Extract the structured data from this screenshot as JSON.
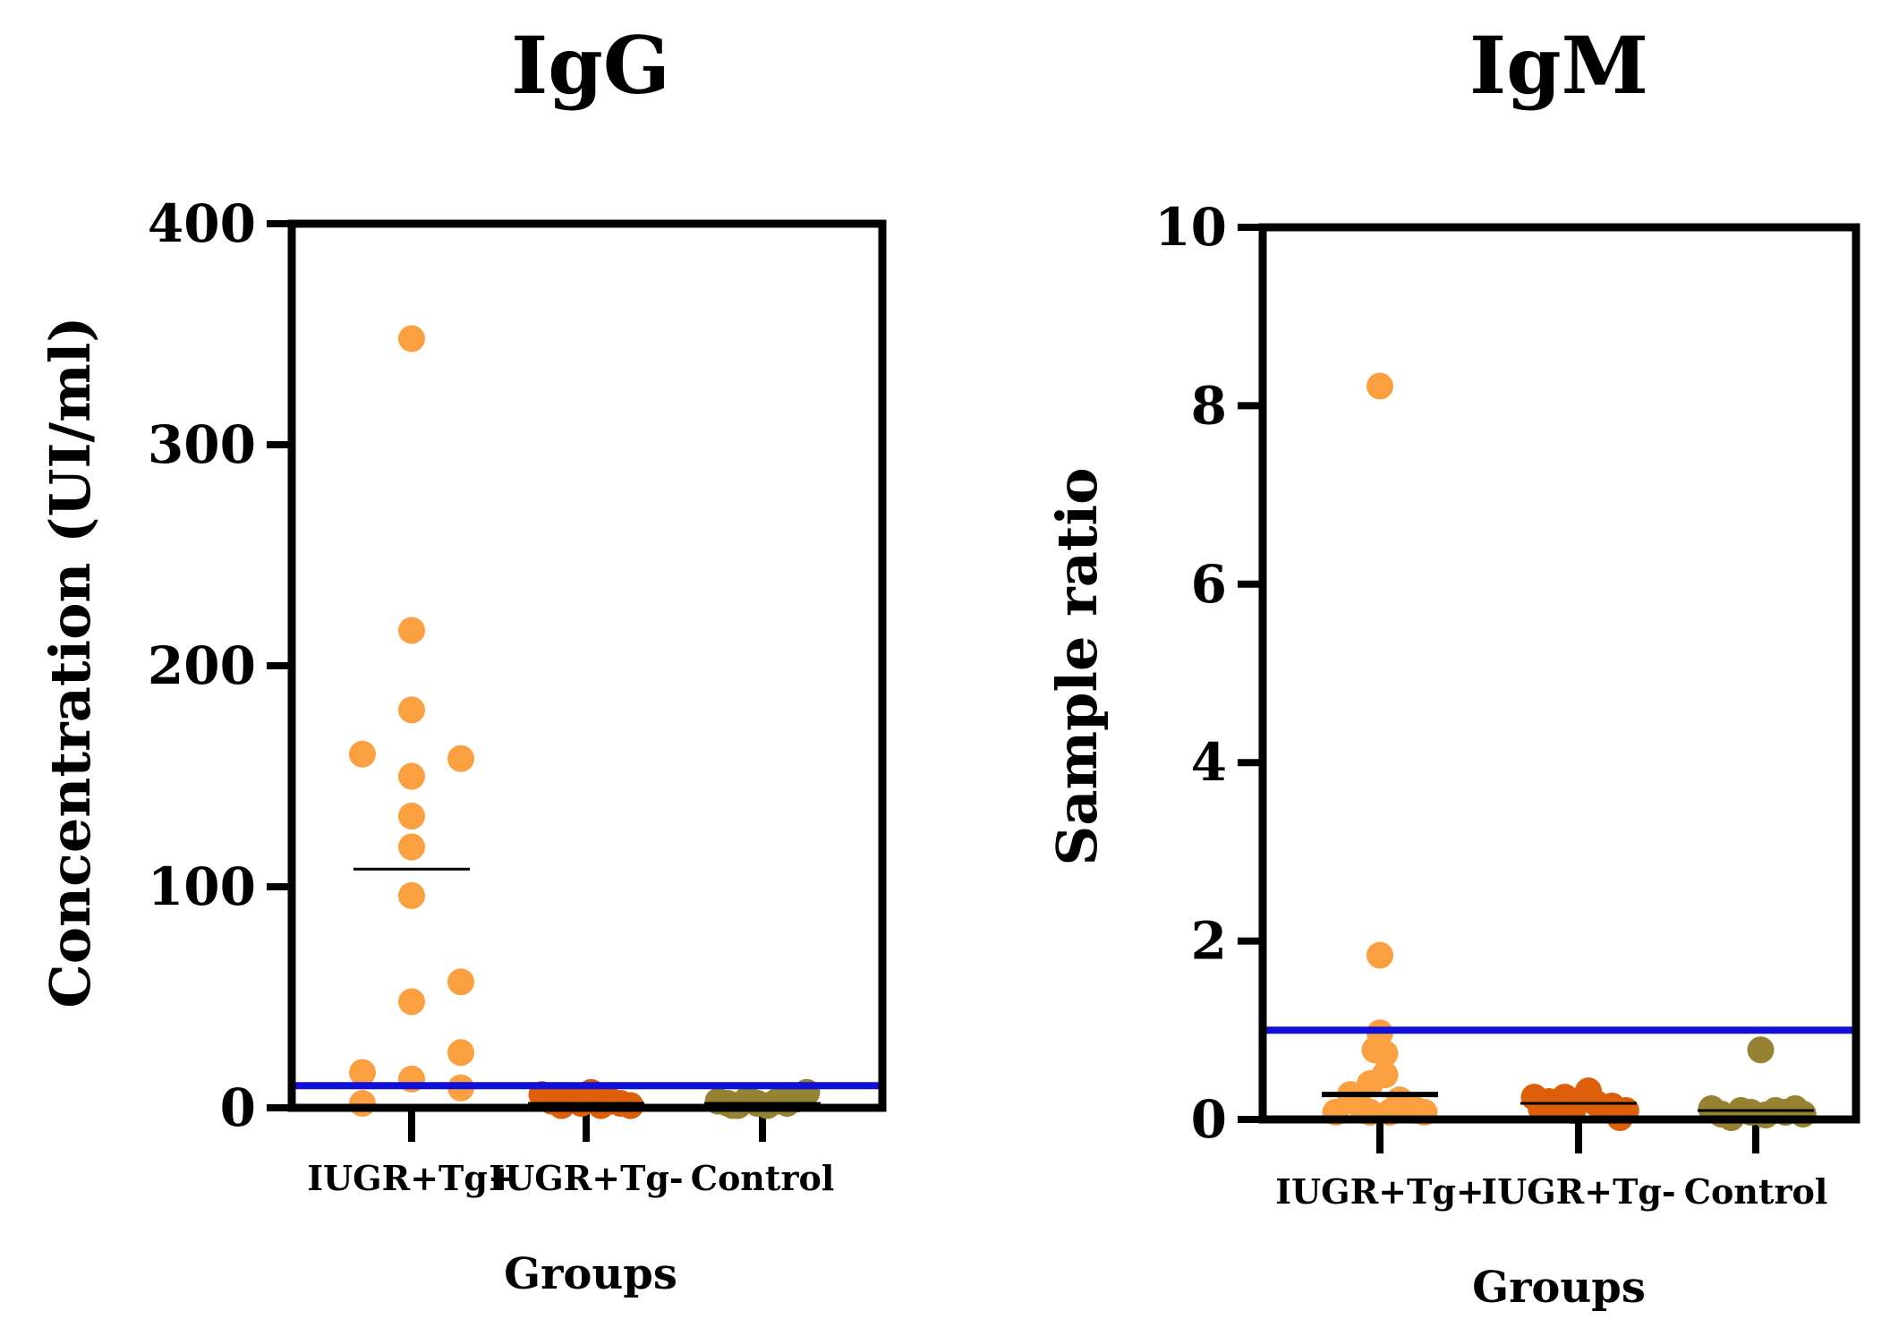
{
  "chart_data": [
    {
      "type": "scatter",
      "title": "IgG",
      "xlabel": "Groups",
      "ylabel": "Concentration (UI/ml)",
      "ylim": [
        0,
        400
      ],
      "yticks": [
        0,
        100,
        200,
        300,
        400
      ],
      "categories": [
        "IUGR+Tg+",
        "IUGR+Tg-",
        "Control"
      ],
      "cutoff": 10,
      "cutoff_color": "#1010d8",
      "grid": false,
      "series": [
        {
          "color": "#fba040",
          "mean": 108,
          "points": [
            {
              "dx": 0,
              "y": 348
            },
            {
              "dx": 0,
              "y": 216
            },
            {
              "dx": 0,
              "y": 180
            },
            {
              "dx": -0.5,
              "y": 160
            },
            {
              "dx": 0.5,
              "y": 158
            },
            {
              "dx": 0,
              "y": 150
            },
            {
              "dx": 0,
              "y": 132
            },
            {
              "dx": 0,
              "y": 118
            },
            {
              "dx": 0,
              "y": 96
            },
            {
              "dx": 0.5,
              "y": 57
            },
            {
              "dx": 0,
              "y": 48
            },
            {
              "dx": 0.5,
              "y": 25
            },
            {
              "dx": -0.5,
              "y": 16
            },
            {
              "dx": 0,
              "y": 13
            },
            {
              "dx": 0.5,
              "y": 9
            },
            {
              "dx": -0.5,
              "y": 2
            }
          ]
        },
        {
          "color": "#dd5f0a",
          "mean": 2,
          "points": [
            {
              "dx": -0.45,
              "y": 6
            },
            {
              "dx": -0.35,
              "y": 3
            },
            {
              "dx": -0.25,
              "y": 1
            },
            {
              "dx": -0.15,
              "y": 4
            },
            {
              "dx": -0.05,
              "y": 2
            },
            {
              "dx": 0.05,
              "y": 7
            },
            {
              "dx": 0.15,
              "y": 1
            },
            {
              "dx": 0.25,
              "y": 3
            },
            {
              "dx": 0.35,
              "y": 2
            },
            {
              "dx": 0.45,
              "y": 1
            },
            {
              "dx": -0.3,
              "y": 5
            },
            {
              "dx": 0.1,
              "y": 3
            }
          ]
        },
        {
          "color": "#958232",
          "mean": 2,
          "points": [
            {
              "dx": -0.45,
              "y": 3
            },
            {
              "dx": -0.35,
              "y": 2
            },
            {
              "dx": -0.25,
              "y": 1
            },
            {
              "dx": -0.15,
              "y": 4
            },
            {
              "dx": -0.05,
              "y": 2
            },
            {
              "dx": 0.05,
              "y": 1
            },
            {
              "dx": 0.15,
              "y": 3
            },
            {
              "dx": 0.25,
              "y": 2
            },
            {
              "dx": 0.35,
              "y": 4
            },
            {
              "dx": 0.45,
              "y": 7
            },
            {
              "dx": -0.3,
              "y": 1
            },
            {
              "dx": 0.3,
              "y": 5
            }
          ]
        }
      ]
    },
    {
      "type": "scatter",
      "title": "IgM",
      "xlabel": "Groups",
      "ylabel": "Sample ratio",
      "ylim": [
        0,
        10
      ],
      "yticks": [
        0,
        2,
        4,
        6,
        8,
        10
      ],
      "categories": [
        "IUGR+Tg+",
        "IUGR+Tg-",
        "Control"
      ],
      "cutoff": 1.0,
      "cutoff_color": "#1010d8",
      "grid": false,
      "series": [
        {
          "color": "#fba040",
          "mean": 0.28,
          "points": [
            {
              "dx": 0,
              "y": 8.22
            },
            {
              "dx": 0,
              "y": 1.84
            },
            {
              "dx": 0,
              "y": 0.97
            },
            {
              "dx": -0.05,
              "y": 0.78
            },
            {
              "dx": 0.05,
              "y": 0.74
            },
            {
              "dx": 0.05,
              "y": 0.5
            },
            {
              "dx": -0.1,
              "y": 0.4
            },
            {
              "dx": -0.3,
              "y": 0.28
            },
            {
              "dx": 0.2,
              "y": 0.22
            },
            {
              "dx": -0.2,
              "y": 0.15
            },
            {
              "dx": 0.3,
              "y": 0.12
            },
            {
              "dx": -0.45,
              "y": 0.08
            },
            {
              "dx": -0.1,
              "y": 0.08
            },
            {
              "dx": 0.1,
              "y": 0.08
            },
            {
              "dx": 0.45,
              "y": 0.08
            },
            {
              "dx": 0.38,
              "y": 0.1
            }
          ]
        },
        {
          "color": "#dd5f0a",
          "mean": 0.18,
          "points": [
            {
              "dx": -0.45,
              "y": 0.25
            },
            {
              "dx": -0.38,
              "y": 0.12
            },
            {
              "dx": -0.3,
              "y": 0.2
            },
            {
              "dx": -0.22,
              "y": 0.15
            },
            {
              "dx": -0.14,
              "y": 0.25
            },
            {
              "dx": -0.06,
              "y": 0.1
            },
            {
              "dx": 0.02,
              "y": 0.22
            },
            {
              "dx": 0.1,
              "y": 0.32
            },
            {
              "dx": 0.18,
              "y": 0.18
            },
            {
              "dx": 0.26,
              "y": 0.12
            },
            {
              "dx": 0.34,
              "y": 0.15
            },
            {
              "dx": 0.42,
              "y": 0.02
            },
            {
              "dx": 0.48,
              "y": 0.1
            }
          ]
        },
        {
          "color": "#958232",
          "mean": 0.1,
          "points": [
            {
              "dx": 0.05,
              "y": 0.78
            },
            {
              "dx": -0.45,
              "y": 0.12
            },
            {
              "dx": -0.35,
              "y": 0.06
            },
            {
              "dx": -0.25,
              "y": 0.02
            },
            {
              "dx": -0.15,
              "y": 0.1
            },
            {
              "dx": -0.05,
              "y": 0.08
            },
            {
              "dx": 0.1,
              "y": 0.05
            },
            {
              "dx": 0.2,
              "y": 0.1
            },
            {
              "dx": 0.3,
              "y": 0.08
            },
            {
              "dx": 0.4,
              "y": 0.12
            },
            {
              "dx": 0.48,
              "y": 0.06
            }
          ]
        }
      ]
    }
  ]
}
